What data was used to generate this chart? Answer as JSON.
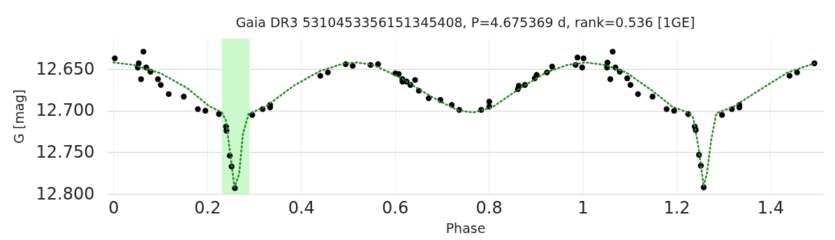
{
  "chart_data": {
    "type": "scatter",
    "title": "Gaia DR3 5310453356151345408, P=4.675369 d, rank=0.536 [1GE]",
    "xlabel": "Phase",
    "ylabel": "G [mag]",
    "xlim": [
      -0.014,
      1.514
    ],
    "xticks": [
      0,
      0.2,
      0.4,
      0.6,
      0.8,
      1,
      1.2,
      1.4
    ],
    "ylim": [
      12.8,
      12.613
    ],
    "yticks": [
      {
        "value": 12.65,
        "label": "12.650"
      },
      {
        "value": 12.7,
        "label": "12.700"
      },
      {
        "value": 12.75,
        "label": "12.750"
      },
      {
        "value": 12.8,
        "label": "12.800"
      }
    ],
    "grid": true,
    "bands": [
      {
        "axis": "x",
        "from": 0.231,
        "to": 0.29,
        "color": "#ccf9cc"
      }
    ],
    "series": [
      {
        "marker": "circle",
        "color": "#000000",
        "x": [
          0.003,
          0.054,
          0.052,
          0.064,
          0.059,
          0.07,
          0.079,
          0.095,
          0.101,
          0.118,
          0.15,
          0.18,
          0.196,
          0.225,
          0.24,
          0.241,
          0.248,
          0.252,
          0.259,
          0.296,
          0.318,
          0.334,
          0.334,
          0.441,
          0.457,
          0.495,
          0.51,
          0.548,
          0.564,
          0.601,
          0.608,
          0.616,
          0.616,
          0.625,
          0.633,
          0.643,
          0.651,
          0.672,
          0.697,
          0.721,
          0.737,
          0.784,
          0.801,
          0.801,
          0.862,
          0.864,
          0.877,
          0.898,
          0.902,
          0.924,
          0.935,
          0.985,
          0.989,
          1.002,
          0.999,
          1.053,
          1.052,
          1.064,
          1.059,
          1.07,
          1.079,
          1.095,
          1.102,
          1.118,
          1.149,
          1.179,
          1.195,
          1.225,
          1.239,
          1.241,
          1.248,
          1.252,
          1.258,
          1.297,
          1.318,
          1.334,
          1.334,
          1.441,
          1.457,
          1.494
        ],
        "values": [
          12.637,
          12.643,
          12.648,
          12.629,
          12.662,
          12.648,
          12.653,
          12.662,
          12.669,
          12.68,
          12.683,
          12.698,
          12.7,
          12.704,
          12.719,
          12.724,
          12.754,
          12.767,
          12.793,
          12.705,
          12.698,
          12.693,
          12.696,
          12.658,
          12.654,
          12.644,
          12.646,
          12.645,
          12.644,
          12.655,
          12.656,
          12.662,
          12.665,
          12.665,
          12.669,
          12.663,
          12.676,
          12.685,
          12.687,
          12.693,
          12.699,
          12.699,
          12.689,
          12.695,
          12.674,
          12.67,
          12.669,
          12.661,
          12.657,
          12.654,
          12.647,
          12.645,
          12.636,
          12.637,
          12.648,
          12.642,
          12.648,
          12.629,
          12.662,
          12.648,
          12.653,
          12.661,
          12.669,
          12.68,
          12.683,
          12.698,
          12.7,
          12.704,
          12.719,
          12.723,
          12.753,
          12.766,
          12.792,
          12.705,
          12.698,
          12.693,
          12.696,
          12.658,
          12.654,
          12.643
        ]
      },
      {
        "type": "line",
        "marker": "none",
        "color": "#228b22",
        "line_style": "dotted",
        "x": [
          0,
          0.044,
          0.101,
          0.158,
          0.203,
          0.231,
          0.24,
          0.248,
          0.258,
          0.268,
          0.276,
          0.288,
          0.327,
          0.384,
          0.441,
          0.492,
          0.52,
          0.554,
          0.611,
          0.651,
          0.693,
          0.737,
          0.767,
          0.807,
          0.864,
          0.922,
          0.967,
          1.007,
          1.048,
          1.093,
          1.151,
          1.191,
          1.228,
          1.236,
          1.248,
          1.258,
          1.265,
          1.274,
          1.285,
          1.322,
          1.38,
          1.437,
          1.494
        ],
        "values": [
          12.642,
          12.645,
          12.655,
          12.673,
          12.694,
          12.702,
          12.712,
          12.747,
          12.792,
          12.776,
          12.728,
          12.704,
          12.694,
          12.67,
          12.652,
          12.643,
          12.642,
          12.645,
          12.66,
          12.674,
          12.688,
          12.7,
          12.702,
          12.696,
          12.674,
          12.654,
          12.645,
          12.642,
          12.645,
          12.654,
          12.677,
          12.695,
          12.703,
          12.709,
          12.748,
          12.791,
          12.775,
          12.735,
          12.703,
          12.695,
          12.674,
          12.654,
          12.643
        ]
      }
    ]
  }
}
